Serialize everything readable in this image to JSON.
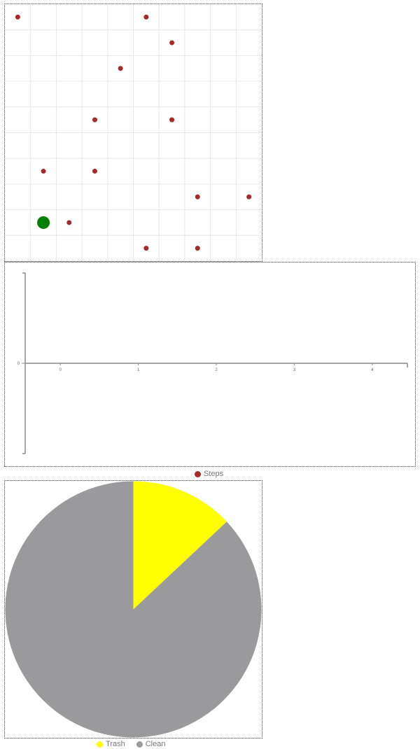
{
  "grid_world": {
    "cols": 10,
    "rows": 10,
    "trash_color": "#a52a2a",
    "agent_color": "#008000",
    "grid_color": "#e6e6e6",
    "agent": {
      "col": 1,
      "row": 8
    },
    "trash": [
      {
        "col": 0,
        "row": 0
      },
      {
        "col": 5,
        "row": 0
      },
      {
        "col": 6,
        "row": 1
      },
      {
        "col": 4,
        "row": 2
      },
      {
        "col": 3,
        "row": 4
      },
      {
        "col": 6,
        "row": 4
      },
      {
        "col": 1,
        "row": 6
      },
      {
        "col": 3,
        "row": 6
      },
      {
        "col": 7,
        "row": 7
      },
      {
        "col": 9,
        "row": 7
      },
      {
        "col": 2,
        "row": 8
      },
      {
        "col": 5,
        "row": 9
      },
      {
        "col": 7,
        "row": 9
      }
    ]
  },
  "chart_data": [
    {
      "type": "line",
      "series": [
        {
          "name": "Steps",
          "color": "#a52a2a",
          "values": []
        }
      ],
      "x": [],
      "x_ticks": [
        "0",
        "1",
        "2",
        "3",
        "4"
      ],
      "y_ticks": [
        "0"
      ],
      "xlim": [
        -0.45,
        4.45
      ],
      "ylim": [
        -1,
        1
      ],
      "legend": "bottom-center"
    },
    {
      "type": "pie",
      "series": [
        {
          "name": "Trash",
          "value": 13,
          "color": "#ffff00"
        },
        {
          "name": "Clean",
          "value": 87,
          "color": "#9a999b"
        }
      ],
      "legend": "bottom-center"
    }
  ],
  "legends": {
    "steps_label": "Steps",
    "trash_label": "Trash",
    "clean_label": "Clean"
  }
}
